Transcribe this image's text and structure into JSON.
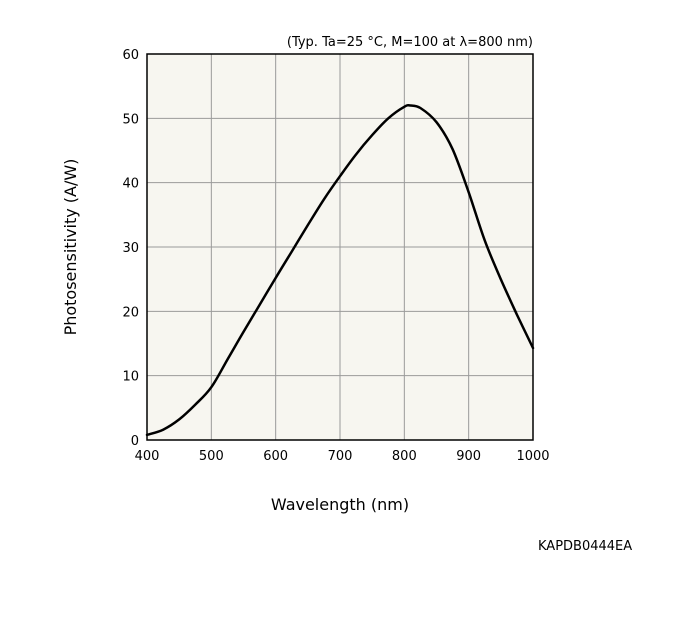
{
  "chart_data": {
    "type": "line",
    "title": "",
    "condition_note": "(Typ. Ta=25 °C, M=100 at λ=800 nm)",
    "xlabel": "Wavelength (nm)",
    "ylabel": "Photosensitivity (A/W)",
    "xlim": [
      400,
      1000
    ],
    "ylim": [
      0,
      60
    ],
    "xticks": [
      "400",
      "500",
      "600",
      "700",
      "800",
      "900",
      "1000"
    ],
    "yticks": [
      "0",
      "10",
      "20",
      "30",
      "40",
      "50",
      "60"
    ],
    "grid": true,
    "series": [
      {
        "x": [
          400,
          425,
          450,
          475,
          500,
          525,
          550,
          575,
          600,
          625,
          650,
          675,
          700,
          725,
          750,
          775,
          800,
          810,
          825,
          850,
          875,
          900,
          925,
          950,
          975,
          1000
        ],
        "y": [
          0.8,
          1.6,
          3.2,
          5.5,
          8.2,
          12.5,
          16.8,
          21.0,
          25.2,
          29.3,
          33.4,
          37.4,
          41.0,
          44.4,
          47.4,
          50.0,
          51.8,
          52.0,
          51.6,
          49.4,
          45.2,
          38.5,
          31.0,
          25.0,
          19.5,
          14.3
        ]
      }
    ],
    "colors": {
      "plot_background": "#f7f6f0",
      "grid": "#9a9a9a",
      "line": "#000000"
    }
  },
  "footer": {
    "code": "KAPDB0444EA"
  }
}
